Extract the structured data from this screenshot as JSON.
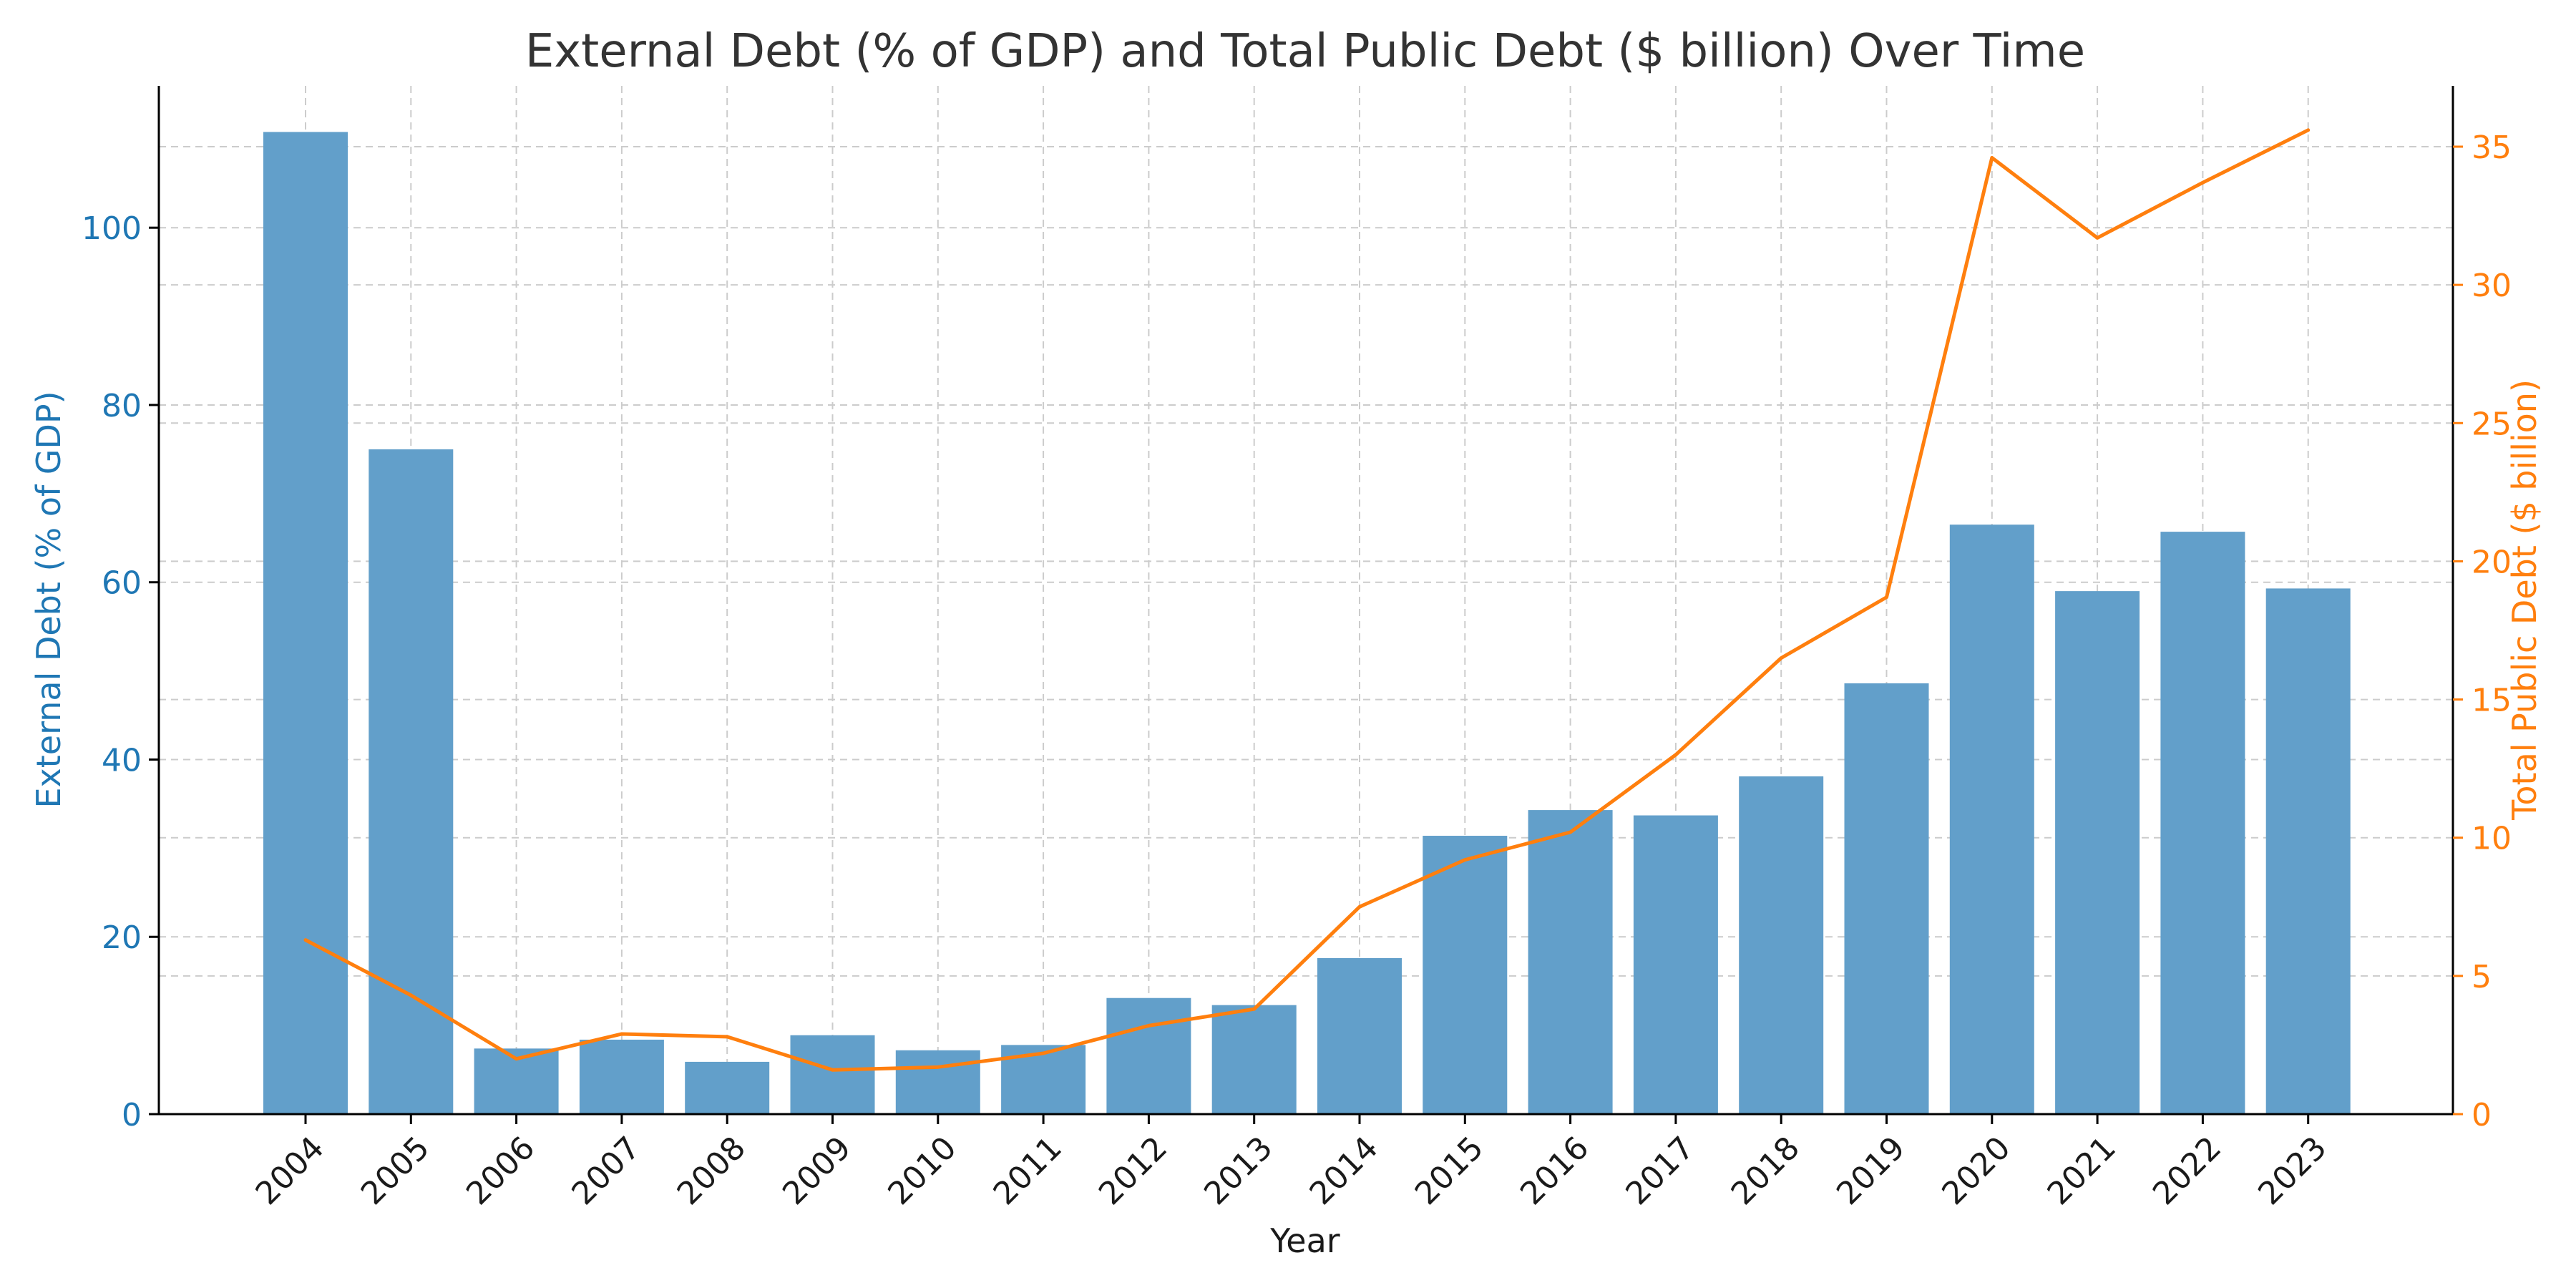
{
  "chart_data": {
    "type": "bar+line",
    "title": "External Debt (% of GDP) and Total Public Debt ($ billion) Over Time",
    "xlabel": "Year",
    "categories": [
      "2004",
      "2005",
      "2006",
      "2007",
      "2008",
      "2009",
      "2010",
      "2011",
      "2012",
      "2013",
      "2014",
      "2015",
      "2016",
      "2017",
      "2018",
      "2019",
      "2020",
      "2021",
      "2022",
      "2023"
    ],
    "series": [
      {
        "name": "External Debt (% of GDP)",
        "type": "bar",
        "axis": "left",
        "color": "#1f77b4",
        "bar_color": "#629fca",
        "values": [
          110.8,
          75.0,
          7.4,
          8.4,
          5.9,
          8.9,
          7.2,
          7.8,
          13.1,
          12.3,
          17.6,
          31.4,
          34.3,
          33.7,
          38.1,
          48.6,
          66.5,
          59.0,
          65.7,
          59.3
        ]
      },
      {
        "name": "Total Public Debt ($ billion)",
        "type": "line",
        "axis": "right",
        "color": "#ff7f0e",
        "values": [
          6.3,
          4.3,
          2.0,
          2.9,
          2.8,
          1.6,
          1.7,
          2.2,
          3.2,
          3.8,
          7.5,
          9.2,
          10.2,
          13.0,
          16.5,
          18.7,
          34.6,
          31.7,
          33.7,
          35.6
        ]
      }
    ],
    "left_axis": {
      "label": "External Debt (% of GDP)",
      "ylim": [
        0,
        116
      ],
      "ticks": [
        0,
        20,
        40,
        60,
        80,
        100
      ],
      "color": "#1f77b4"
    },
    "right_axis": {
      "label": "Total Public Debt ($ billion)",
      "ylim": [
        0,
        37.2
      ],
      "ticks": [
        0,
        5,
        10,
        15,
        20,
        25,
        30,
        35
      ],
      "color": "#ff7f0e"
    },
    "grid": true
  }
}
